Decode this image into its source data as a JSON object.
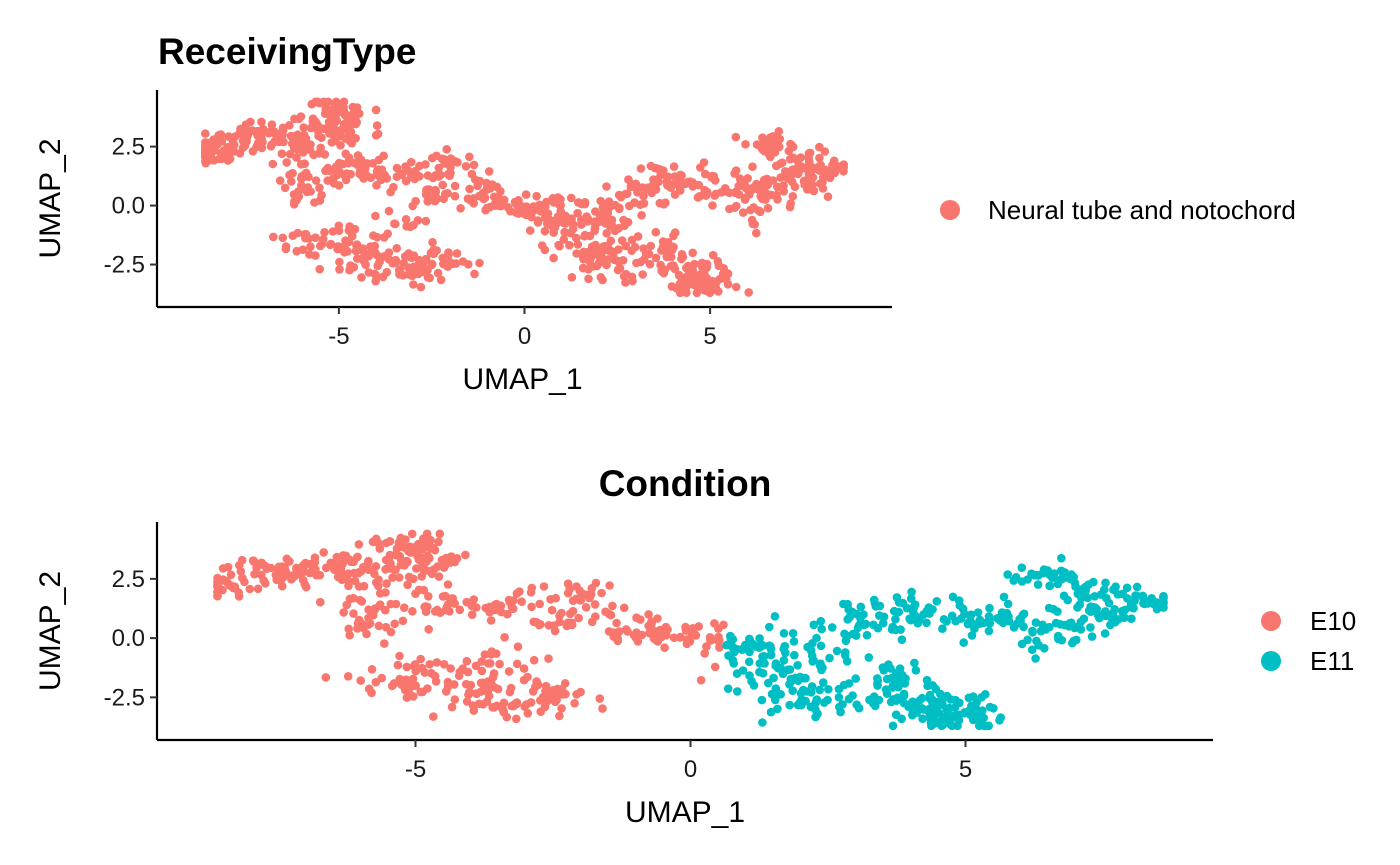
{
  "chart_data": [
    {
      "type": "scatter",
      "title": "ReceivingType",
      "xlabel": "UMAP_1",
      "ylabel": "UMAP_2",
      "xlim": [
        -9.9,
        9.9
      ],
      "ylim": [
        -4.3,
        4.9
      ],
      "xticks": [
        -5,
        0,
        5
      ],
      "xtick_labels": [
        "-5",
        "0",
        "5"
      ],
      "yticks": [
        2.5,
        0.0,
        -2.5
      ],
      "ytick_labels": [
        "2.5",
        "0.0",
        "-2.5"
      ],
      "grid": false,
      "legend_position": "right",
      "series": [
        {
          "name": "Neural tube and notochord",
          "color": "#F8766D",
          "region": "all"
        }
      ]
    },
    {
      "type": "scatter",
      "title": "Condition",
      "xlabel": "UMAP_1",
      "ylabel": "UMAP_2",
      "xlim": [
        -9.7,
        9.5
      ],
      "ylim": [
        -4.3,
        4.9
      ],
      "xticks": [
        -5,
        0,
        5
      ],
      "xtick_labels": [
        "-5",
        "0",
        "5"
      ],
      "yticks": [
        2.5,
        0.0,
        -2.5
      ],
      "ytick_labels": [
        "2.5",
        "0.0",
        "-2.5"
      ],
      "grid": false,
      "legend_position": "right",
      "series": [
        {
          "name": "E10",
          "color": "#F8766D",
          "region": "left"
        },
        {
          "name": "E11",
          "color": "#00BFC4",
          "region": "right"
        }
      ]
    }
  ]
}
